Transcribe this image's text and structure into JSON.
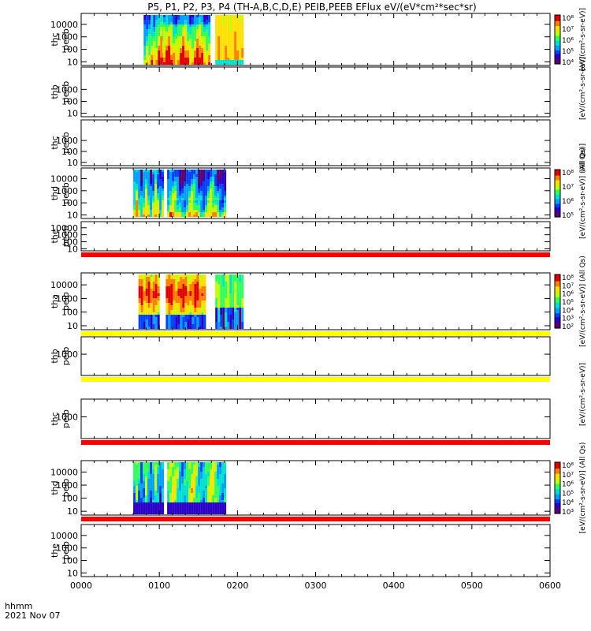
{
  "title": "P5, P1, P2, P3, P4 (TH-A,B,C,D,E) PEIB,PEEB EFlux eV/(eV*cm²*sec*sr)",
  "footer": {
    "time_label": "hhmm",
    "date_label": "2021 Nov 07"
  },
  "colorbar_units": {
    "short": "[eV/(cm²-s-sr-eV)]",
    "long": "[eV/(cm²-s-sr-eV)] (All Qs)",
    "cut": "(All Qs)]"
  },
  "palette": [
    "#5a006e",
    "#2a00c8",
    "#0040ff",
    "#00a0ff",
    "#00e0d0",
    "#30ff60",
    "#c0ff00",
    "#ffe000",
    "#ff8000",
    "#e00000"
  ],
  "band_colors": {
    "red": "#ff0000",
    "yellow": "#ffff00"
  },
  "chart_data": {
    "type": "heatmap",
    "x_axis": {
      "range": [
        "0000",
        "0600"
      ],
      "ticks": [
        "0000",
        "0100",
        "0200",
        "0300",
        "0400",
        "0500",
        "0600"
      ]
    },
    "panels": [
      {
        "name": "thc peeb",
        "label_top": "thc",
        "label_bot": "peeb",
        "yticks": [
          "10",
          "100",
          "1000",
          "10000"
        ],
        "ylog": true,
        "blocks": [
          {
            "x": [
              "0048",
              "0118"
            ],
            "pattern": "highA"
          },
          {
            "x": [
              "0103",
              "0139"
            ],
            "pattern": "highB"
          },
          {
            "x": [
              "0143",
              "0203"
            ],
            "pattern": "yellow"
          }
        ],
        "colorbar": {
          "labels": [
            "10⁸",
            "10⁷",
            "10⁶",
            "10⁵",
            "10⁴"
          ]
        }
      },
      {
        "name": "thb peeb",
        "label_top": "thb",
        "label_bot": "peeb",
        "yticks": [
          "10",
          "100",
          "1000"
        ],
        "ylog": true,
        "blocks": []
      },
      {
        "name": "thc peeb",
        "label_top": "thc",
        "label_bot": "peeb",
        "yticks": [
          "10",
          "100",
          "1000"
        ],
        "ylog": true,
        "blocks": []
      },
      {
        "name": "thd peeb",
        "label_top": "thd",
        "label_bot": "peeb",
        "yticks": [
          "10",
          "100",
          "1000",
          "10000"
        ],
        "ylog": true,
        "blocks": [
          {
            "x": [
              "0040",
              "0102"
            ],
            "pattern": "mixD"
          },
          {
            "x": [
              "0106",
              "0151"
            ],
            "pattern": "mixD2"
          }
        ],
        "colorbar": {
          "labels": [
            "10⁸",
            "10⁷",
            "10⁶",
            "10⁵"
          ]
        }
      },
      {
        "name": "the peeb",
        "label_top": "the",
        "label_bot": "peeb",
        "yticks": [
          "10",
          "100",
          "1000",
          "10000"
        ],
        "ylog": true,
        "blocks": [],
        "band_bottom": "red"
      },
      {
        "name": "tha peib",
        "label_top": "tha",
        "label_bot": "peib",
        "yticks": [
          "10",
          "100",
          "1000",
          "10000"
        ],
        "ylog": true,
        "blocks": [
          {
            "x": [
              "0044",
              "0100"
            ],
            "pattern": "ionA"
          },
          {
            "x": [
              "0105",
              "0135"
            ],
            "pattern": "ionA"
          },
          {
            "x": [
              "0143",
              "0203"
            ],
            "pattern": "ionC"
          }
        ],
        "colorbar": {
          "labels": [
            "10⁸",
            "10⁷",
            "10⁶",
            "10⁵",
            "10⁴",
            "10³",
            "10²"
          ]
        },
        "band_bottom": "yellow"
      },
      {
        "name": "thb peib",
        "label_top": "thb",
        "label_bot": "peib",
        "yticks": [
          "1000"
        ],
        "ylog": true,
        "blocks": [],
        "band_bottom": "yellow"
      },
      {
        "name": "thc peib",
        "label_top": "thc",
        "label_bot": "peib",
        "yticks": [
          "1000"
        ],
        "ylog": true,
        "blocks": [],
        "band_bottom": "red"
      },
      {
        "name": "thd peib",
        "label_top": "thd",
        "label_bot": "peib",
        "yticks": [
          "10",
          "100",
          "1000",
          "10000"
        ],
        "ylog": true,
        "blocks": [
          {
            "x": [
              "0040",
              "0102"
            ],
            "pattern": "ionD"
          },
          {
            "x": [
              "0106",
              "0151"
            ],
            "pattern": "ionD2"
          }
        ],
        "colorbar": {
          "labels": [
            "10⁸",
            "10⁷",
            "10⁶",
            "10⁵",
            "10⁴",
            "10³"
          ]
        },
        "band_bottom": "red"
      },
      {
        "name": "the peib",
        "label_top": "the",
        "label_bot": "peib",
        "yticks": [
          "10",
          "100",
          "1000",
          "10000"
        ],
        "ylog": true,
        "blocks": []
      }
    ]
  }
}
